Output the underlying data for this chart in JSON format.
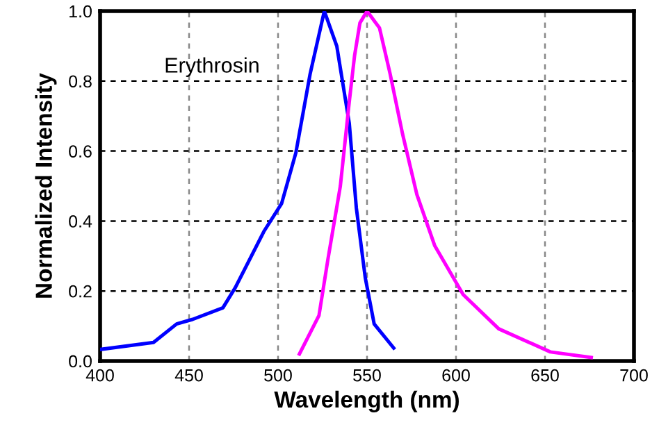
{
  "chart_data": {
    "type": "line",
    "xlabel": "Wavelength (nm)",
    "ylabel": "Normalized Intensity",
    "annotations": [
      "Erythrosin"
    ],
    "xlim": [
      400,
      700
    ],
    "xticks": [
      400,
      450,
      500,
      550,
      600,
      650,
      700
    ],
    "ylim": [
      0,
      1.0
    ],
    "yticks": [
      {
        "value": 0,
        "label": "0.0"
      },
      {
        "value": 0.2,
        "label": "0.2"
      },
      {
        "value": 0.4,
        "label": "0.4"
      },
      {
        "value": 0.6,
        "label": "0.6"
      },
      {
        "value": 0.8,
        "label": "0.8"
      },
      {
        "value": 1.0,
        "label": "1.0"
      }
    ],
    "grid": true,
    "legend": false,
    "series": [
      {
        "color": "#0000ff",
        "x": [
          400,
          430,
          443,
          452,
          469,
          476,
          492,
          502,
          510,
          518,
          526,
          533,
          540,
          544,
          549,
          554,
          565
        ],
        "values": [
          0.033,
          0.053,
          0.106,
          0.119,
          0.152,
          0.21,
          0.37,
          0.45,
          0.595,
          0.82,
          1.0,
          0.9,
          0.68,
          0.437,
          0.238,
          0.106,
          0.037
        ]
      },
      {
        "color": "#ff00ff",
        "x": [
          512,
          523,
          528,
          535,
          540,
          543,
          546,
          550,
          557,
          563,
          570,
          578,
          588,
          604,
          624,
          653,
          676
        ],
        "values": [
          0.02,
          0.13,
          0.29,
          0.5,
          0.74,
          0.873,
          0.966,
          1.0,
          0.952,
          0.82,
          0.648,
          0.476,
          0.33,
          0.19,
          0.092,
          0.026,
          0.01
        ]
      }
    ]
  }
}
